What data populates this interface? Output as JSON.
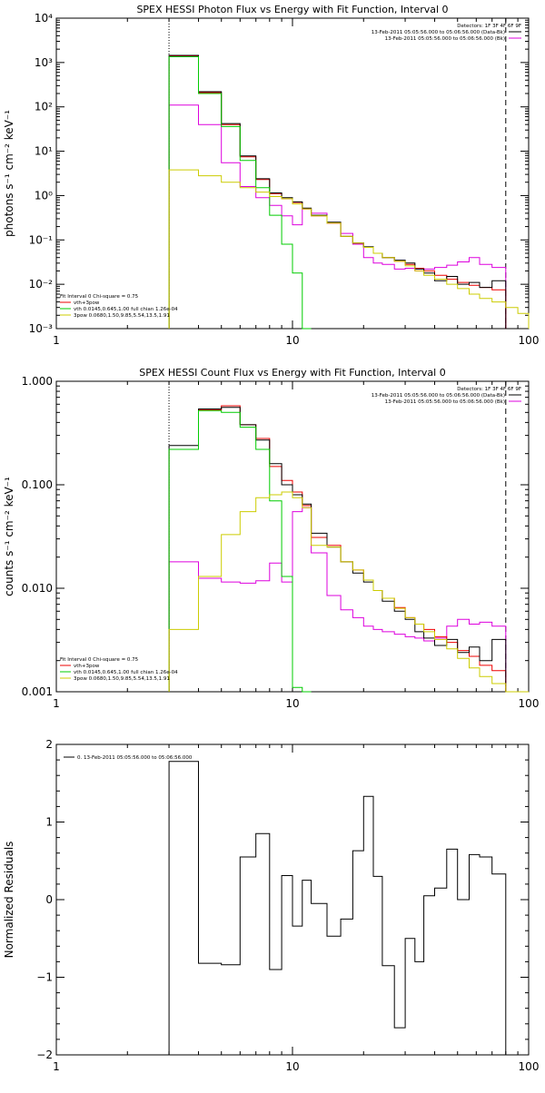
{
  "chart_data": [
    {
      "type": "line",
      "title": "SPEX HESSI Photon Flux vs Energy with Fit Function, Interval 0",
      "ylabel": "photons s⁻¹ cm⁻² keV⁻¹",
      "xlabel": "",
      "xscale": "log",
      "yscale": "log",
      "xlim": [
        1,
        100
      ],
      "ylim": [
        0.001,
        10000
      ],
      "xticks": [
        {
          "v": 1,
          "label": "1"
        },
        {
          "v": 10,
          "label": "10"
        },
        {
          "v": 100,
          "label": "100"
        }
      ],
      "yticks": [
        {
          "v": 0.001,
          "label": "10⁻³"
        },
        {
          "v": 0.01,
          "label": "10⁻²"
        },
        {
          "v": 0.1,
          "label": "10⁻¹"
        },
        {
          "v": 1,
          "label": "10⁰"
        },
        {
          "v": 10,
          "label": "10¹"
        },
        {
          "v": 100,
          "label": "10²"
        },
        {
          "v": 1000,
          "label": "10³"
        },
        {
          "v": 10000,
          "label": "10⁴"
        }
      ],
      "vlines": [
        {
          "x": 3,
          "style": "dotted"
        },
        {
          "x": 80,
          "style": "dashed"
        }
      ],
      "legend_right": [
        {
          "text": "Detectors: 1F 3F 4F 6F 9F",
          "color": ""
        },
        {
          "text": "13-Feb-2011 05:05:56.000 to 05:06:56.000 (Data-Bk)",
          "color": "#000000"
        },
        {
          "text": "13-Feb-2011 05:05:56.000 to 05:06:56.000 (Bk)",
          "color": "#dd00dd"
        }
      ],
      "legend_left": [
        {
          "text": "Fit Interval 0   Chi-square = 0.75",
          "color": ""
        },
        {
          "text": "vth+3pow",
          "color": "#ee0000"
        },
        {
          "text": "vth 0.0145,0.645,1.00  full chian 1.26e-04",
          "color": "#00cc00"
        },
        {
          "text": "3pow 0.0680,1.50,9.85,5.54,13.5,1.91",
          "color": "#cccc00"
        }
      ],
      "edges": [
        3,
        4,
        5,
        6,
        7,
        8,
        9,
        10,
        11,
        12,
        14,
        16,
        18,
        20,
        22,
        24,
        27,
        30,
        33,
        36,
        40,
        45,
        50,
        56,
        62,
        70,
        80,
        90,
        100
      ],
      "series": [
        {
          "key": "bk",
          "color": "#dd00dd",
          "values": [
            110,
            40,
            5.5,
            1.6,
            0.9,
            0.6,
            0.35,
            0.22,
            0.5,
            0.4,
            0.24,
            0.14,
            0.08,
            0.04,
            0.03,
            0.028,
            0.022,
            0.023,
            0.02,
            0.022,
            0.024,
            0.027,
            0.032,
            0.04,
            0.028,
            0.024
          ]
        },
        {
          "key": "fit_red",
          "color": "#ee0000",
          "values": [
            1400,
            210,
            40,
            7.5,
            2.3,
            1.1,
            0.85,
            0.7,
            0.5,
            0.35,
            0.24,
            0.12,
            0.085,
            0.068,
            0.05,
            0.04,
            0.033,
            0.028,
            0.023,
            0.02,
            0.016,
            0.013,
            0.011,
            0.0095,
            0.0085,
            0.0075
          ]
        },
        {
          "key": "data",
          "color": "#000000",
          "values": [
            1450,
            220,
            42,
            7.8,
            2.4,
            1.15,
            0.9,
            0.72,
            0.52,
            0.36,
            0.25,
            0.12,
            0.085,
            0.07,
            0.05,
            0.04,
            0.035,
            0.03,
            0.022,
            0.018,
            0.012,
            0.015,
            0.01,
            0.011,
            0.0085,
            0.012
          ]
        },
        {
          "key": "vth",
          "color": "#00cc00",
          "values": [
            1350,
            200,
            36,
            6.2,
            1.5,
            0.36,
            0.08,
            0.018,
            0.0009
          ]
        },
        {
          "key": "pow",
          "color": "#cccc00",
          "values": [
            3.8,
            2.8,
            2.0,
            1.5,
            1.2,
            0.95,
            0.85,
            0.65,
            0.5,
            0.35,
            0.24,
            0.12,
            0.085,
            0.068,
            0.05,
            0.04,
            0.033,
            0.026,
            0.02,
            0.016,
            0.013,
            0.01,
            0.008,
            0.006,
            0.0048,
            0.004,
            0.003,
            0.0022
          ]
        }
      ]
    },
    {
      "type": "line",
      "title": "SPEX HESSI Count Flux vs Energy with Fit Function, Interval 0",
      "ylabel": "counts s⁻¹ cm⁻² keV⁻¹",
      "xlabel": "",
      "xscale": "log",
      "yscale": "log",
      "xlim": [
        1,
        100
      ],
      "ylim": [
        0.001,
        1
      ],
      "xticks": [
        {
          "v": 1,
          "label": "1"
        },
        {
          "v": 10,
          "label": "10"
        },
        {
          "v": 100,
          "label": "100"
        }
      ],
      "yticks": [
        {
          "v": 0.001,
          "label": "0.001"
        },
        {
          "v": 0.01,
          "label": "0.010"
        },
        {
          "v": 0.1,
          "label": "0.100"
        },
        {
          "v": 1,
          "label": "1.000"
        }
      ],
      "vlines": [
        {
          "x": 3,
          "style": "dotted"
        },
        {
          "x": 80,
          "style": "dashed"
        }
      ],
      "legend_right": [
        {
          "text": "Detectors: 1F 3F 4F 6F 9F",
          "color": ""
        },
        {
          "text": "13-Feb-2011 05:05:56.000 to 05:06:56.000 (Data-Bk)",
          "color": "#000000"
        },
        {
          "text": "13-Feb-2011 05:05:56.000 to 05:06:56.000 (Bk)",
          "color": "#dd00dd"
        }
      ],
      "legend_left": [
        {
          "text": "Fit Interval 0   Chi-square = 0.75",
          "color": ""
        },
        {
          "text": "vth+3pow",
          "color": "#ee0000"
        },
        {
          "text": "vth 0.0145,0.645,1.00  full chian 1.26e-04",
          "color": "#00cc00"
        },
        {
          "text": "3pow 0.0680,1.50,9.85,5.54,13.5,1.91",
          "color": "#cccc00"
        }
      ],
      "edges": [
        3,
        4,
        5,
        6,
        7,
        8,
        9,
        10,
        11,
        12,
        14,
        16,
        18,
        20,
        22,
        24,
        27,
        30,
        33,
        36,
        40,
        45,
        50,
        56,
        62,
        70,
        80,
        90,
        100
      ],
      "series": [
        {
          "key": "bk",
          "color": "#dd00dd",
          "values": [
            0.018,
            0.0125,
            0.0115,
            0.0112,
            0.0118,
            0.0175,
            0.0115,
            0.055,
            0.06,
            0.022,
            0.0085,
            0.0062,
            0.0052,
            0.0043,
            0.004,
            0.0038,
            0.0036,
            0.0034,
            0.0033,
            0.0031,
            0.0033,
            0.0043,
            0.005,
            0.0045,
            0.0047,
            0.0043
          ]
        },
        {
          "key": "fit_red",
          "color": "#ee0000",
          "values": [
            0.22,
            0.53,
            0.58,
            0.38,
            0.28,
            0.15,
            0.11,
            0.085,
            0.063,
            0.031,
            0.026,
            0.018,
            0.015,
            0.012,
            0.0095,
            0.008,
            0.0065,
            0.0052,
            0.0045,
            0.004,
            0.0034,
            0.003,
            0.0025,
            0.0022,
            0.0018,
            0.0016
          ]
        },
        {
          "key": "data",
          "color": "#000000",
          "values": [
            0.24,
            0.54,
            0.56,
            0.38,
            0.27,
            0.16,
            0.1,
            0.08,
            0.065,
            0.034,
            0.025,
            0.018,
            0.014,
            0.0115,
            0.0095,
            0.0075,
            0.006,
            0.005,
            0.0038,
            0.0033,
            0.0028,
            0.0032,
            0.0024,
            0.0027,
            0.002,
            0.0032
          ]
        },
        {
          "key": "vth",
          "color": "#00cc00",
          "values": [
            0.22,
            0.52,
            0.5,
            0.36,
            0.22,
            0.07,
            0.013,
            0.0011,
            0.0009
          ]
        },
        {
          "key": "pow",
          "color": "#cccc00",
          "values": [
            0.004,
            0.013,
            0.033,
            0.055,
            0.075,
            0.08,
            0.085,
            0.075,
            0.06,
            0.026,
            0.025,
            0.018,
            0.015,
            0.012,
            0.0095,
            0.008,
            0.0064,
            0.0052,
            0.0045,
            0.0038,
            0.0032,
            0.0026,
            0.0021,
            0.0017,
            0.0014,
            0.0012,
            0.001,
            0.0008
          ]
        }
      ]
    },
    {
      "type": "line",
      "title": "",
      "ylabel": "Normalized Residuals",
      "xlabel": "",
      "xscale": "log",
      "yscale": "linear",
      "xlim": [
        1,
        100
      ],
      "ylim": [
        -2,
        2
      ],
      "xticks": [
        {
          "v": 1,
          "label": "1"
        },
        {
          "v": 10,
          "label": "10"
        },
        {
          "v": 100,
          "label": "100"
        }
      ],
      "yticks": [
        {
          "v": -2,
          "label": "−2"
        },
        {
          "v": -1,
          "label": "−1"
        },
        {
          "v": 0,
          "label": "0"
        },
        {
          "v": 1,
          "label": "1"
        },
        {
          "v": 2,
          "label": "2"
        }
      ],
      "legend_left_top": [
        {
          "text": "0. 13-Feb-2011 05:05:56.000 to 05:06:56.000",
          "color": "#000000"
        }
      ],
      "edges": [
        3,
        4,
        5,
        6,
        7,
        8,
        9,
        10,
        11,
        12,
        14,
        16,
        18,
        20,
        22,
        24,
        27,
        30,
        33,
        36,
        40,
        45,
        50,
        56,
        62,
        70,
        80
      ],
      "series": [
        {
          "key": "resid",
          "color": "#000000",
          "values": [
            1.78,
            -0.82,
            -0.84,
            0.55,
            0.85,
            -0.9,
            0.31,
            -0.34,
            0.25,
            -0.05,
            -0.47,
            -0.25,
            0.63,
            1.33,
            0.3,
            -0.85,
            -1.65,
            -0.5,
            -0.8,
            0.05,
            0.15,
            0.65,
            0.0,
            0.58,
            0.55,
            0.33
          ]
        }
      ]
    }
  ]
}
